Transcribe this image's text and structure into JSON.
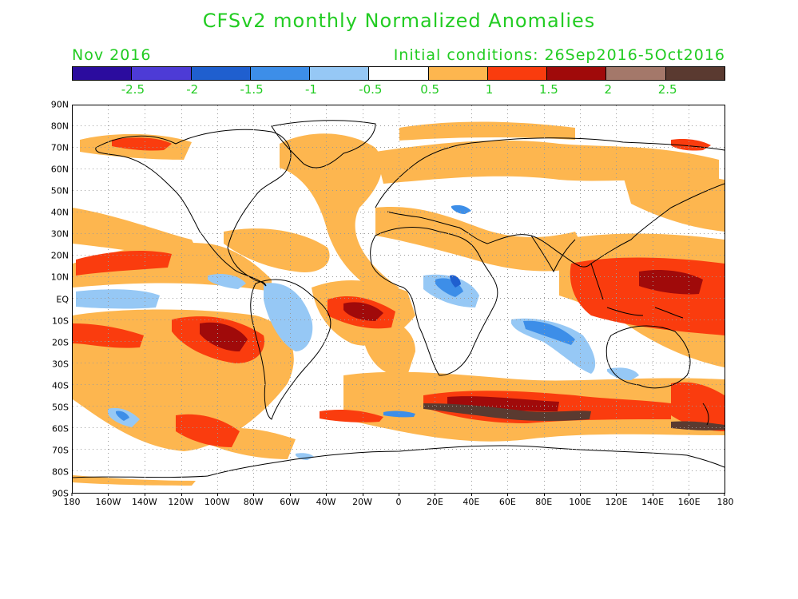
{
  "title": "CFSv2 monthly Normalized Anomalies",
  "subtitle_left": "Nov 2016",
  "subtitle_right": "Initial conditions: 26Sep2016-5Oct2016",
  "colors": {
    "title_text": "#22cc22",
    "colorbar": [
      "#2b0c9e",
      "#4d3bd6",
      "#1f5fcf",
      "#3d8ee8",
      "#96c8f5",
      "#ffffff",
      "#fdb64f",
      "#fa3c0e",
      "#a00a0a",
      "#a4786a",
      "#5a3a30"
    ]
  },
  "colorbar_labels": [
    "-2.5",
    "-2",
    "-1.5",
    "-1",
    "-0.5",
    "0.5",
    "1",
    "1.5",
    "2",
    "2.5"
  ],
  "lat_labels": [
    "90N",
    "80N",
    "70N",
    "60N",
    "50N",
    "40N",
    "30N",
    "20N",
    "10N",
    "EQ",
    "10S",
    "20S",
    "30S",
    "40S",
    "50S",
    "60S",
    "70S",
    "80S",
    "90S"
  ],
  "lon_labels": [
    "180",
    "160W",
    "140W",
    "120W",
    "100W",
    "80W",
    "60W",
    "40W",
    "20W",
    "0",
    "20E",
    "40E",
    "60E",
    "80E",
    "100E",
    "120E",
    "140E",
    "160E",
    "180"
  ]
}
